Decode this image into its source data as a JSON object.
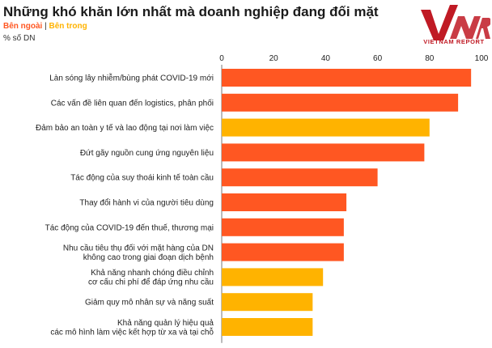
{
  "header": {
    "title": "Những khó khăn lớn nhất mà doanh nghiệp đang đối mặt",
    "legend_outside": "Bên ngoài",
    "legend_separator": "|",
    "legend_inside": "Bên trong",
    "unit": "% số DN"
  },
  "logo": {
    "mark": "VNR",
    "text": "VIETNAM REPORT"
  },
  "colors": {
    "outside": "#FF5722",
    "inside": "#FFB300",
    "brand": "#C01A24"
  },
  "chart_data": {
    "type": "bar",
    "orientation": "horizontal",
    "categories": [
      [
        "Làn sóng lây nhiễm/bùng phát COVID-19 mới"
      ],
      [
        "Các vấn đề liên quan đến logistics, phân phối"
      ],
      [
        "Đảm bảo an toàn y tế và lao động tại nơi làm việc"
      ],
      [
        "Đứt gãy nguồn cung ứng nguyên liệu"
      ],
      [
        "Tác động của suy thoái kinh tế toàn cầu"
      ],
      [
        "Thay đổi hành vi của người tiêu dùng"
      ],
      [
        "Tác động của COVID-19 đến thuế, thương mại"
      ],
      [
        "Nhu cầu tiêu thụ đối với mặt hàng của DN",
        "không cao trong giai đoạn dịch bệnh"
      ],
      [
        "Khả năng nhanh chóng điều chỉnh",
        "cơ cấu chi phí để đáp ứng nhu cầu"
      ],
      [
        "Giảm quy mô nhân sự và năng suất"
      ],
      [
        "Khả năng quản lý hiệu quả",
        "các mô hình làm việc kết hợp từ xa và tại chỗ"
      ]
    ],
    "values": [
      96,
      91,
      80,
      78,
      60,
      48,
      47,
      47,
      39,
      35,
      35
    ],
    "groups": [
      "outside",
      "outside",
      "inside",
      "outside",
      "outside",
      "outside",
      "outside",
      "outside",
      "inside",
      "inside",
      "inside"
    ],
    "series_names": {
      "outside": "Bên ngoài",
      "inside": "Bên trong"
    },
    "xlim": [
      0,
      100
    ],
    "xticks": [
      0,
      20,
      40,
      60,
      80,
      100
    ],
    "xlabel": "",
    "ylabel": "",
    "grid": false,
    "legend": "top-left"
  }
}
